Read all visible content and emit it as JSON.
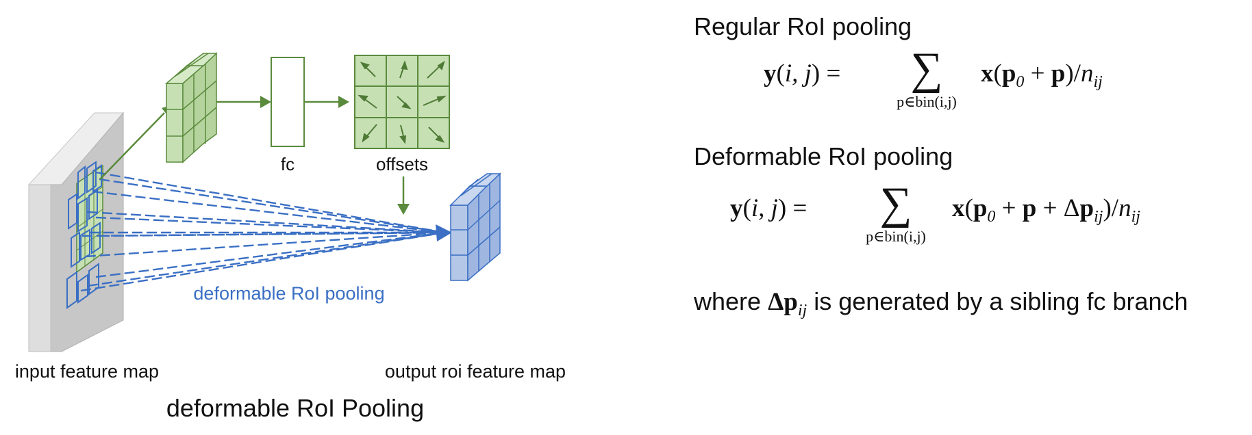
{
  "diagram": {
    "labels": {
      "fc": "fc",
      "offsets": "offsets",
      "deformable_roi_pooling": "deformable RoI pooling",
      "input_feature_map": "input feature map",
      "output_roi_feature_map": "output roi feature map",
      "caption": "deformable RoI Pooling"
    },
    "colors": {
      "green_stroke": "#5a8a3c",
      "green_fill": "#c6e0b4",
      "blue_stroke": "#3a6fc4",
      "blue_fill": "#b4c7e7",
      "gray_front": "#c8c8c8",
      "gray_light": "#e0e0e0"
    }
  },
  "formulas": {
    "regular_heading": "Regular RoI pooling",
    "deformable_heading": "Deformable RoI pooling",
    "sum_symbol": "∑",
    "sum_subscript": "p∈bin(i,j)",
    "where_prefix": "where",
    "where_math": "Δp",
    "where_math_sub": "ij",
    "where_suffix": "is generated by a sibling fc branch"
  }
}
